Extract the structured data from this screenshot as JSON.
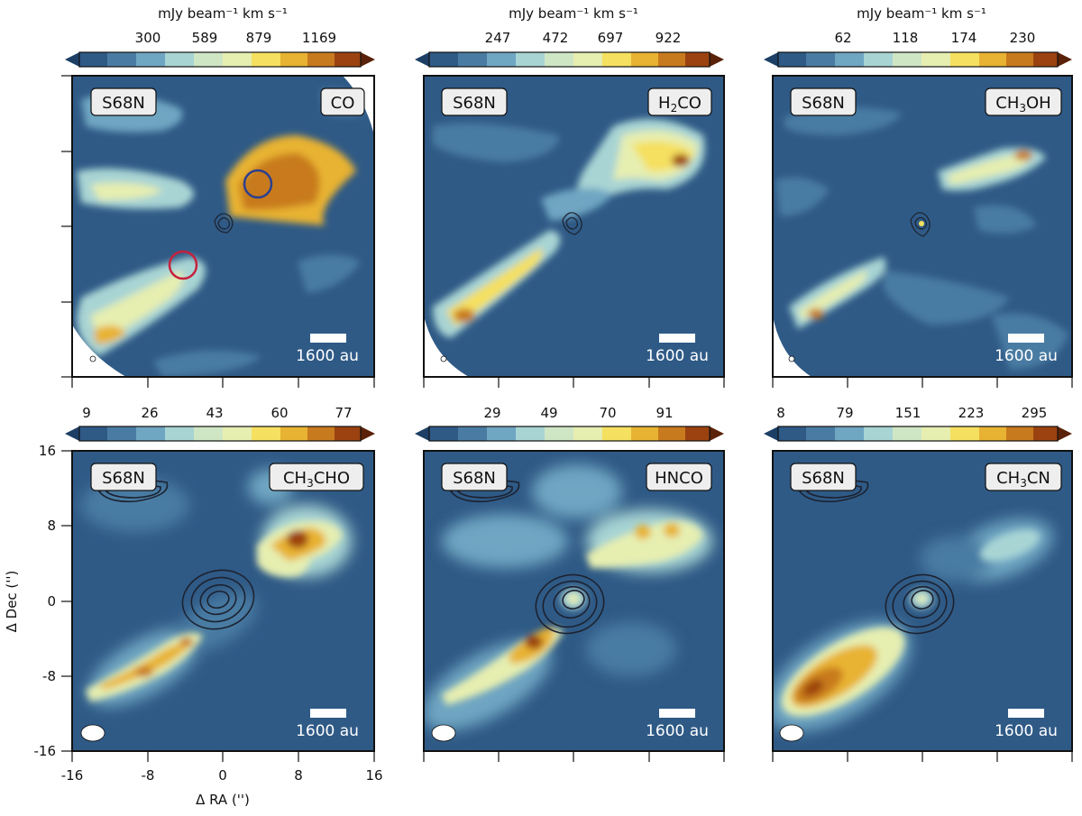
{
  "source_label": "S68N",
  "colorbar_unit": "mJy beam⁻¹ km s⁻¹",
  "scalebar_label": "1600 au",
  "colors": {
    "background": "#2f5a86",
    "colormap": [
      "#1d3f66",
      "#2f5a86",
      "#4a7ca3",
      "#6fa6c2",
      "#a8d4d4",
      "#e6eeb0",
      "#f5e060",
      "#e8b233",
      "#c87a1e",
      "#9b4210"
    ],
    "contour": "#1c2230",
    "blue_circle": "#2c3f8f",
    "red_circle": "#c8203c"
  },
  "axes": {
    "ylabel": "Δ Dec ('')",
    "xlabel": "Δ RA ('')",
    "ticks": [
      "-16",
      "-8",
      "0",
      "8",
      "16"
    ]
  },
  "panels": [
    {
      "molecule": "CO",
      "molecule_parts": [
        "CO"
      ],
      "colorbar_unit_shown": true,
      "cbar_ticks": [
        "300",
        "589",
        "879",
        "1169"
      ]
    },
    {
      "molecule": "H2CO",
      "molecule_parts": [
        "H",
        "2",
        "CO"
      ],
      "colorbar_unit_shown": true,
      "cbar_ticks": [
        "247",
        "472",
        "697",
        "922"
      ]
    },
    {
      "molecule": "CH3OH",
      "molecule_parts": [
        "CH",
        "3",
        "OH"
      ],
      "colorbar_unit_shown": true,
      "cbar_ticks": [
        "62",
        "118",
        "174",
        "230"
      ]
    },
    {
      "molecule": "CH3CHO",
      "molecule_parts": [
        "CH",
        "3",
        "CHO"
      ],
      "colorbar_unit_shown": false,
      "cbar_ticks": [
        "9",
        "26",
        "43",
        "60",
        "77"
      ]
    },
    {
      "molecule": "HNCO",
      "molecule_parts": [
        "HNCO"
      ],
      "colorbar_unit_shown": false,
      "cbar_ticks": [
        "29",
        "49",
        "70",
        "91"
      ]
    },
    {
      "molecule": "CH3CN",
      "molecule_parts": [
        "CH",
        "3",
        "CN"
      ],
      "colorbar_unit_shown": false,
      "cbar_ticks": [
        "8",
        "79",
        "151",
        "223",
        "295"
      ]
    }
  ]
}
